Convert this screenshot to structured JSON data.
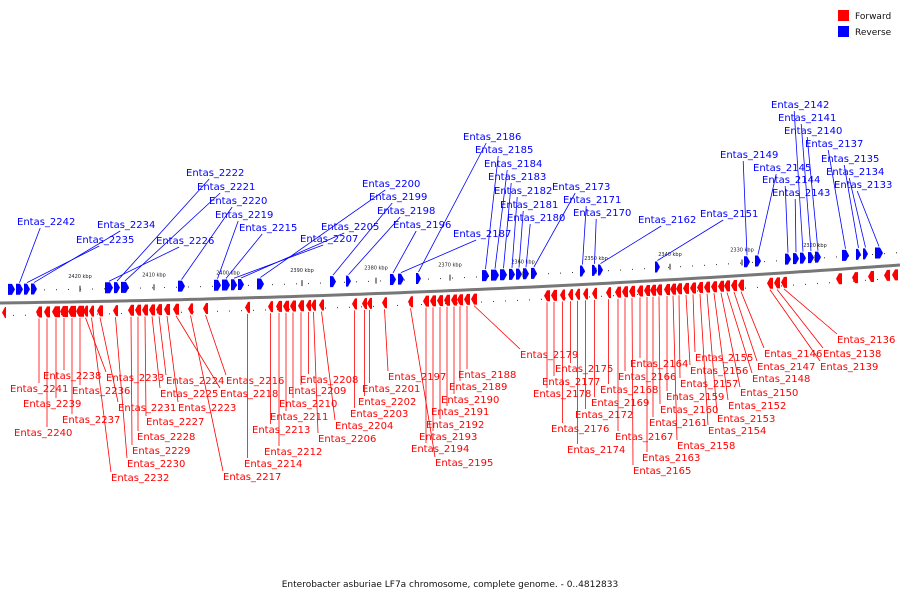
{
  "legend": {
    "forward": {
      "label": "Forward",
      "color": "#ff0000"
    },
    "reverse": {
      "label": "Reverse",
      "color": "#0000ff"
    }
  },
  "caption": "Enterobacter asburiae LF7a chromosome, complete genome. - 0..4812833",
  "ticks": [
    "2420 kbp",
    "2410 kbp",
    "2400 kbp",
    "2390 kbp",
    "2380 kbp",
    "2370 kbp",
    "2360 kbp",
    "2350 kbp",
    "2340 kbp",
    "2330 kbp",
    "2320 kbp"
  ],
  "reverse_labels": [
    "Entas_2242",
    "Entas_2235",
    "Entas_2234",
    "Entas_2226",
    "Entas_2222",
    "Entas_2221",
    "Entas_2220",
    "Entas_2219",
    "Entas_2215",
    "Entas_2207",
    "Entas_2205",
    "Entas_2200",
    "Entas_2199",
    "Entas_2198",
    "Entas_2196",
    "Entas_2187",
    "Entas_2186",
    "Entas_2185",
    "Entas_2184",
    "Entas_2183",
    "Entas_2182",
    "Entas_2181",
    "Entas_2180",
    "Entas_2173",
    "Entas_2171",
    "Entas_2170",
    "Entas_2162",
    "Entas_2151",
    "Entas_2149",
    "Entas_2145",
    "Entas_2144",
    "Entas_2143",
    "Entas_2142",
    "Entas_2141",
    "Entas_2140",
    "Entas_2137",
    "Entas_2135",
    "Entas_2134",
    "Entas_2133"
  ],
  "forward_labels": [
    "Entas_2241",
    "Entas_2240",
    "Entas_2239",
    "Entas_2238",
    "Entas_2237",
    "Entas_2236",
    "Entas_2233",
    "Entas_2232",
    "Entas_2231",
    "Entas_2230",
    "Entas_2229",
    "Entas_2228",
    "Entas_2227",
    "Entas_2225",
    "Entas_2224",
    "Entas_2223",
    "Entas_2218",
    "Entas_2217",
    "Entas_2216",
    "Entas_2214",
    "Entas_2213",
    "Entas_2212",
    "Entas_2211",
    "Entas_2210",
    "Entas_2209",
    "Entas_2208",
    "Entas_2206",
    "Entas_2204",
    "Entas_2203",
    "Entas_2202",
    "Entas_2201",
    "Entas_2197",
    "Entas_2195",
    "Entas_2194",
    "Entas_2193",
    "Entas_2192",
    "Entas_2191",
    "Entas_2190",
    "Entas_2189",
    "Entas_2188",
    "Entas_2179",
    "Entas_2178",
    "Entas_2177",
    "Entas_2176",
    "Entas_2175",
    "Entas_2174",
    "Entas_2172",
    "Entas_2169",
    "Entas_2168",
    "Entas_2167",
    "Entas_2166",
    "Entas_2165",
    "Entas_2164",
    "Entas_2163",
    "Entas_2161",
    "Entas_2160",
    "Entas_2159",
    "Entas_2158",
    "Entas_2157",
    "Entas_2156",
    "Entas_2155",
    "Entas_2154",
    "Entas_2153",
    "Entas_2152",
    "Entas_2150",
    "Entas_2148",
    "Entas_2147",
    "Entas_2146",
    "Entas_2139",
    "Entas_2138",
    "Entas_2136"
  ]
}
